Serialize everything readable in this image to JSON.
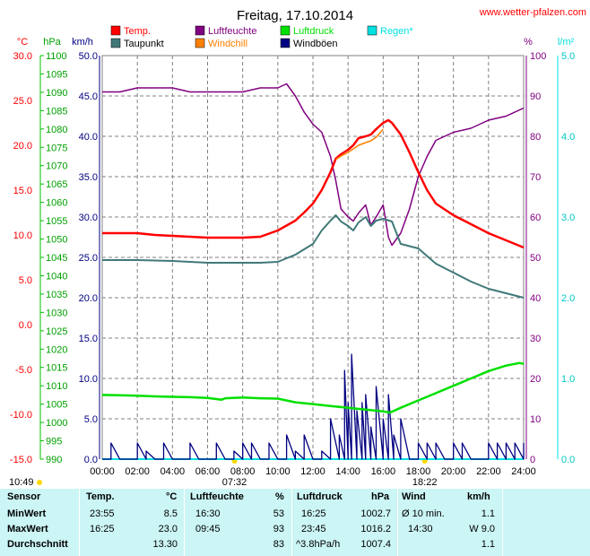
{
  "header": {
    "title": "Freitag, 17.10.2014",
    "site": "www.wetter-pfalzen.com"
  },
  "colors": {
    "temp": "#ff0000",
    "dewpoint": "#407878",
    "humidity": "#800080",
    "windchill": "#ff8000",
    "pressure": "#00e000",
    "gust": "#000080",
    "rain": "#00e0e0"
  },
  "axes": {
    "temp_unit": "°C",
    "pressure_unit": "hPa",
    "wind_unit": "km/h",
    "humidity_unit": "%",
    "rain_unit": "l/m²",
    "temp_ticks": [
      "30.0",
      "25.0",
      "20.0",
      "15.0",
      "10.0",
      "5.0",
      "0.0",
      "-5.0",
      "-10.0",
      "-15.0"
    ],
    "pressure_ticks": [
      "1100",
      "1095",
      "1090",
      "1085",
      "1080",
      "1075",
      "1070",
      "1065",
      "1060",
      "1055",
      "1050",
      "1045",
      "1040",
      "1035",
      "1030",
      "1025",
      "1020",
      "1015",
      "1010",
      "1005",
      "1000",
      "995",
      "990"
    ],
    "wind_ticks": [
      "50.0",
      "45.0",
      "40.0",
      "35.0",
      "30.0",
      "25.0",
      "20.0",
      "15.0",
      "10.0",
      "5.0",
      "0.0"
    ],
    "humidity_ticks": [
      "100",
      "90",
      "80",
      "70",
      "60",
      "50",
      "40",
      "30",
      "20",
      "10",
      "0"
    ],
    "rain_ticks": [
      "5.0",
      "4.0",
      "3.0",
      "2.0",
      "1.0",
      "0.0"
    ],
    "time_ticks": [
      "00:00",
      "02:00",
      "04:00",
      "06:00",
      "08:00",
      "10:00",
      "12:00",
      "14:00",
      "16:00",
      "18:00",
      "20:00",
      "22:00",
      "24:00"
    ]
  },
  "sun": {
    "moonrise": "10:49",
    "sunrise": "07:32",
    "sunset": "18:22"
  },
  "table": {
    "headers": {
      "sensor": "Sensor",
      "temp": "Temp.",
      "temp_unit": "°C",
      "hum": "Luftfeuchte",
      "hum_unit": "%",
      "press": "Luftdruck",
      "press_unit": "hPa",
      "wind": "Wind",
      "wind_unit": "km/h"
    },
    "rows": [
      {
        "label": "MinWert",
        "t_time": "23:55",
        "t_val": "8.5",
        "h_time": "16:30",
        "h_val": "53",
        "p_time": "16:25",
        "p_val": "1002.7",
        "w_time": "Ø 10 min.",
        "w_val": "1.1"
      },
      {
        "label": "MaxWert",
        "t_time": "16:25",
        "t_val": "23.0",
        "h_time": "09:45",
        "h_val": "93",
        "p_time": "23:45",
        "p_val": "1016.2",
        "w_time": "14:30",
        "w_val": "W 9.0"
      },
      {
        "label": "Durchschnitt",
        "t_time": "",
        "t_val": "13.30",
        "h_time": "",
        "h_val": "83",
        "p_time": "^3.8hPa/h",
        "p_val": "1007.4",
        "w_time": "",
        "w_val": "1.1"
      }
    ]
  },
  "chart_data": {
    "type": "line",
    "title": "Freitag, 17.10.2014",
    "x_unit": "hours",
    "xlim": [
      0,
      24
    ],
    "axes_ranges": {
      "temp_c": [
        -15,
        30
      ],
      "pressure_hpa": [
        990,
        1100
      ],
      "wind_kmh": [
        0,
        50
      ],
      "humidity_pct": [
        0,
        100
      ],
      "rain_lm2": [
        0,
        5
      ]
    },
    "grid": true,
    "legend_position": "top",
    "legend": [
      "Temp.",
      "Taupunkt",
      "Luftfeuchte",
      "Windchill",
      "Luftdruck",
      "Windböen",
      "Regen*"
    ],
    "series": [
      {
        "name": "Temp.",
        "axis": "temp_c",
        "x": [
          0,
          1,
          2,
          3,
          4,
          5,
          6,
          7,
          8,
          9,
          10,
          11,
          11.5,
          12,
          12.5,
          13,
          13.3,
          13.6,
          14,
          14.3,
          14.6,
          15,
          15.3,
          15.6,
          16,
          16.3,
          16.5,
          17,
          17.5,
          18,
          18.5,
          19,
          20,
          21,
          22,
          23,
          24
        ],
        "y": [
          10.2,
          10.2,
          10.2,
          10.0,
          9.9,
          9.8,
          9.7,
          9.7,
          9.7,
          9.8,
          10.5,
          11.6,
          12.5,
          13.5,
          15.0,
          17.0,
          18.5,
          19.0,
          19.5,
          20.0,
          20.8,
          21.0,
          21.2,
          21.8,
          22.5,
          22.8,
          22.5,
          21.2,
          19.2,
          17.0,
          15.0,
          13.5,
          12.2,
          11.2,
          10.2,
          9.4,
          8.6
        ]
      },
      {
        "name": "Taupunkt",
        "axis": "temp_c",
        "x": [
          0,
          2,
          4,
          6,
          8,
          9,
          10,
          11,
          12,
          12.5,
          13,
          13.3,
          13.6,
          14,
          14.3,
          14.6,
          15,
          15.3,
          15.6,
          16,
          16.5,
          17,
          18,
          19,
          20,
          21,
          22,
          23,
          24
        ],
        "y": [
          7.2,
          7.2,
          7.1,
          6.9,
          6.9,
          6.9,
          7.0,
          7.8,
          9.0,
          10.5,
          11.6,
          12.2,
          11.5,
          11.0,
          10.5,
          11.4,
          12.0,
          11.0,
          11.6,
          11.8,
          11.5,
          9.0,
          8.5,
          6.8,
          5.8,
          4.8,
          4.0,
          3.5,
          3.0
        ]
      },
      {
        "name": "Luftfeuchte",
        "axis": "humidity_pct",
        "x": [
          0,
          1,
          2,
          3,
          4,
          5,
          6,
          7,
          8,
          9,
          10,
          10.5,
          11,
          11.5,
          12,
          12.5,
          13,
          13.3,
          13.6,
          14,
          14.3,
          14.6,
          15,
          15.3,
          15.6,
          16,
          16.3,
          16.5,
          17,
          17.5,
          18,
          18.5,
          19,
          20,
          21,
          22,
          23,
          24
        ],
        "y": [
          91,
          91,
          92,
          92,
          92,
          91,
          91,
          91,
          91,
          92,
          92,
          93,
          90,
          86,
          83,
          81,
          75,
          69,
          62,
          60,
          59,
          61,
          63,
          58,
          60,
          63,
          55,
          53,
          56,
          62,
          70,
          75,
          79,
          81,
          82,
          84,
          85,
          87
        ]
      },
      {
        "name": "Windchill",
        "axis": "temp_c",
        "x": [
          13.3,
          13.6,
          14,
          14.3,
          14.6,
          15,
          15.3,
          15.6,
          16
        ],
        "y": [
          18.4,
          18.8,
          19.2,
          19.6,
          20.0,
          20.3,
          20.5,
          20.9,
          21.8
        ]
      },
      {
        "name": "Luftdruck",
        "axis": "pressure_hpa",
        "x": [
          0,
          1,
          2,
          3,
          4,
          5,
          6,
          6.8,
          7,
          8,
          9,
          10,
          11,
          12,
          13,
          14,
          15,
          16,
          16.4,
          17,
          18,
          19,
          20,
          21,
          22,
          23,
          23.75,
          24
        ],
        "y": [
          1007.5,
          1007.4,
          1007.3,
          1007.1,
          1007.0,
          1006.9,
          1006.7,
          1006.2,
          1006.6,
          1006.8,
          1006.6,
          1006.5,
          1005.5,
          1005.0,
          1004.5,
          1004.0,
          1003.5,
          1003.0,
          1002.7,
          1004.0,
          1006.0,
          1008.0,
          1010.0,
          1012.0,
          1014.0,
          1015.5,
          1016.2,
          1016.0
        ]
      },
      {
        "name": "Windböen",
        "axis": "wind_kmh",
        "x": [
          0,
          0.5,
          1,
          1.5,
          2,
          2.5,
          3,
          3.5,
          4,
          4.5,
          5,
          5.5,
          6,
          6.5,
          7,
          7.5,
          8,
          8.5,
          9,
          9.5,
          10,
          10.5,
          11,
          11.5,
          12,
          12.5,
          13,
          13.5,
          13.8,
          14,
          14.2,
          14.5,
          14.8,
          15,
          15.3,
          15.6,
          16,
          16.3,
          16.6,
          17,
          17.5,
          18,
          18.5,
          19,
          19.5,
          20,
          20.5,
          21,
          21.5,
          22,
          22.5,
          23,
          23.5,
          24
        ],
        "y": [
          0,
          2,
          0,
          0,
          2,
          1,
          0,
          2,
          0,
          0,
          2,
          0,
          0,
          2,
          0,
          1,
          2,
          2,
          0,
          2,
          0,
          3,
          1,
          3,
          0,
          1,
          5,
          3,
          11,
          7,
          13,
          6,
          7,
          8,
          4,
          9,
          5,
          8,
          3,
          5,
          0,
          2,
          2,
          2,
          0,
          2,
          2,
          0,
          0,
          2,
          2,
          2,
          2,
          2
        ]
      },
      {
        "name": "Regen*",
        "axis": "rain_lm2",
        "x": [
          0,
          24
        ],
        "y": [
          0,
          0
        ]
      }
    ]
  }
}
